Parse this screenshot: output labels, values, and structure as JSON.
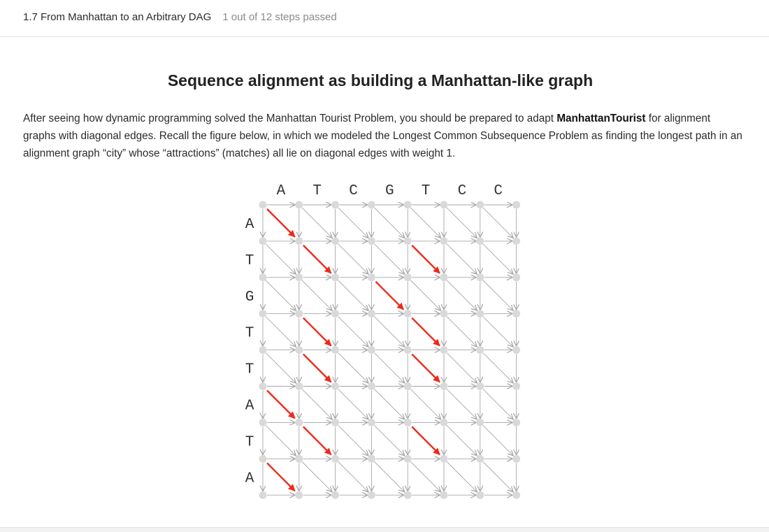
{
  "header": {
    "breadcrumb": "1.7 From Manhattan to an Arbitrary DAG",
    "progress": "1 out of 12 steps passed"
  },
  "main": {
    "title": "Sequence alignment as building a Manhattan-like graph",
    "paragraph": {
      "before_bold": "After seeing how dynamic programming solved the Manhattan Tourist Problem, you should be prepared to adapt ",
      "bold": "ManhattanTourist",
      "after_bold": " for alignment graphs with diagonal edges. Recall the figure below, in which we modeled the Longest Common Subsequence Problem as finding the longest path in an alignment graph “city” whose “attractions” (matches) all lie on diagonal edges with weight 1."
    }
  },
  "figure": {
    "top_sequence": [
      "A",
      "T",
      "C",
      "G",
      "T",
      "C",
      "C"
    ],
    "side_sequence": [
      "A",
      "T",
      "G",
      "T",
      "T",
      "A",
      "T",
      "A"
    ],
    "highlighted_diagonals": [
      [
        0,
        0
      ],
      [
        1,
        1
      ],
      [
        1,
        4
      ],
      [
        2,
        3
      ],
      [
        3,
        1
      ],
      [
        3,
        4
      ],
      [
        4,
        1
      ],
      [
        4,
        4
      ],
      [
        5,
        0
      ],
      [
        6,
        1
      ],
      [
        6,
        4
      ],
      [
        7,
        0
      ]
    ],
    "colors": {
      "grid": "#a6a6a6",
      "node": "#d9d9d9",
      "highlight": "#ee2a1b",
      "label": "#333333"
    }
  }
}
